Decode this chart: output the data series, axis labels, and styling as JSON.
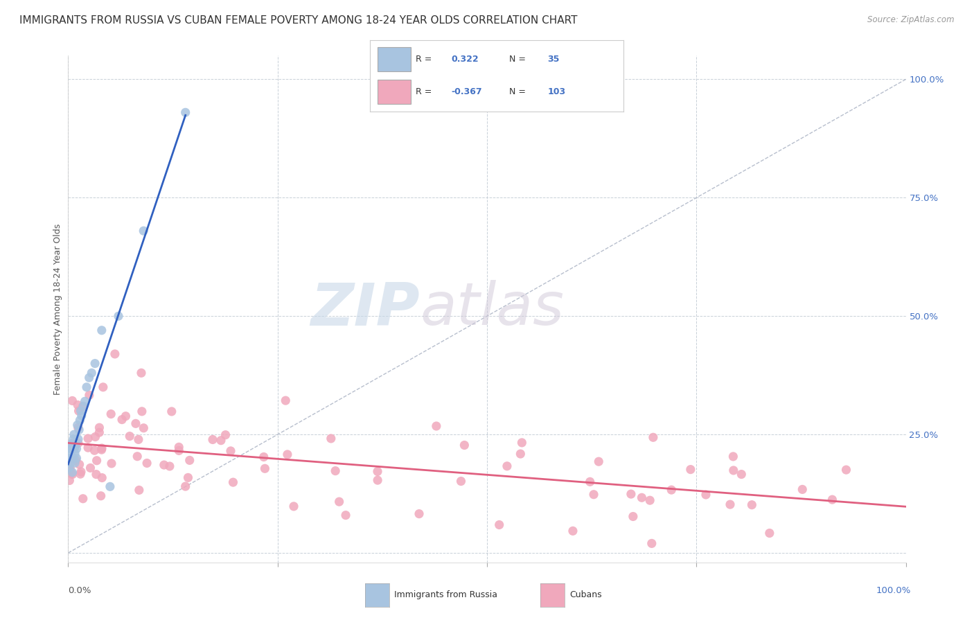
{
  "title": "IMMIGRANTS FROM RUSSIA VS CUBAN FEMALE POVERTY AMONG 18-24 YEAR OLDS CORRELATION CHART",
  "source": "Source: ZipAtlas.com",
  "ylabel": "Female Poverty Among 18-24 Year Olds",
  "xlim": [
    0,
    1.0
  ],
  "ylim": [
    -0.02,
    1.05
  ],
  "watermark_zip": "ZIP",
  "watermark_atlas": "atlas",
  "russia_color": "#a8c4e0",
  "cuba_color": "#f0a8bc",
  "russia_line_color": "#3060c0",
  "cuba_line_color": "#e06080",
  "diagonal_color": "#b0b8c8",
  "background_color": "#ffffff",
  "grid_color": "#c8d0d8",
  "title_fontsize": 11,
  "label_fontsize": 9,
  "tick_fontsize": 9.5,
  "russia_seed": 42,
  "cuba_seed": 99
}
